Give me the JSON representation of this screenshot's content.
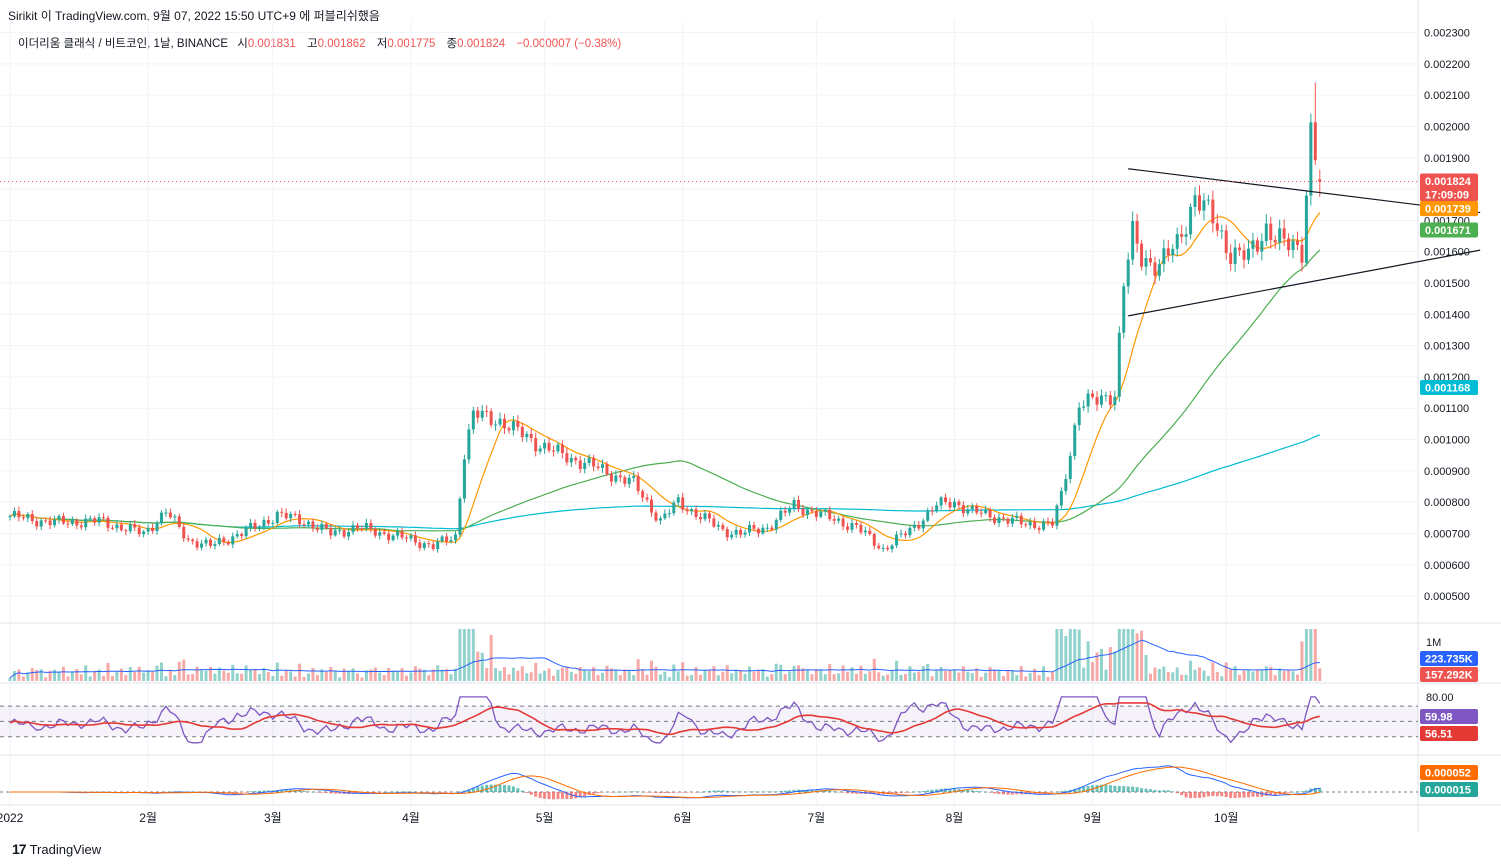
{
  "header": {
    "author": "Sirikit",
    "watermark_line": "이 TradingView.com, 9월 07, 2022 15:50 UTC+9 에 퍼블리쉬했음"
  },
  "symbol": {
    "name": "이더리움 클래식 / 비트코인, 1날, BINANCE",
    "open_label": "시",
    "open": "0.001831",
    "high_label": "고",
    "high": "0.001862",
    "low_label": "저",
    "low": "0.001775",
    "close_label": "종",
    "close": "0.001824",
    "change": "−0.000007 (−0.38%)"
  },
  "footer": {
    "brand": "TradingView",
    "logo": "17"
  },
  "colors": {
    "up": "#26a69a",
    "down": "#ef5350",
    "ma_fast": "#ff9800",
    "ma_mid": "#4caf50",
    "ma_slow": "#00bcd4",
    "rsi": "#7e57c2",
    "rsi_ma": "#e53935",
    "macd": "#2962ff",
    "signal": "#ff6d00",
    "vol_ma": "#2962ff"
  },
  "chart_data": {
    "type": "candlestick",
    "title": "이더리움 클래식 / 비트코인, 1날, BINANCE",
    "price_axis": {
      "ticks": [
        "0.002300",
        "0.002200",
        "0.002100",
        "0.002000",
        "0.001900",
        "0.001800",
        "0.001700",
        "0.001600",
        "0.001500",
        "0.001400",
        "0.001300",
        "0.001200",
        "0.001100",
        "0.001000",
        "0.000900",
        "0.000800",
        "0.000700",
        "0.000600",
        "0.000500"
      ],
      "ylim": [
        0.00043,
        0.00234
      ],
      "scale": "linear"
    },
    "time_axis": {
      "labels": [
        "2022",
        "2월",
        "3월",
        "4월",
        "5월",
        "6월",
        "7월",
        "8월",
        "9월",
        "10월"
      ],
      "label_index": [
        0,
        31,
        59,
        90,
        120,
        151,
        181,
        212,
        243,
        273
      ]
    },
    "price_badges": [
      {
        "label": "last_close",
        "value": "0.001824",
        "sub": "17:09:09",
        "color": "#ef5350"
      },
      {
        "label": "ma_fast",
        "value": "0.001739",
        "color": "#ff9800"
      },
      {
        "label": "ma_mid",
        "value": "0.001671",
        "color": "#4caf50"
      },
      {
        "label": "ma_slow",
        "value": "0.001168",
        "color": "#00bcd4"
      }
    ],
    "volume_panel": {
      "scale_label": "1M",
      "badges": [
        {
          "value": "223.735K",
          "color": "#2962ff"
        },
        {
          "value": "157.292K",
          "color": "#ef5350"
        }
      ]
    },
    "rsi_panel": {
      "level_label": "80.00",
      "upper": 70,
      "lower": 30,
      "badges": [
        {
          "value": "59.98",
          "color": "#7e57c2"
        },
        {
          "value": "56.51",
          "color": "#e53935"
        }
      ]
    },
    "macd_panel": {
      "badges": [
        {
          "value": "0.000052",
          "color": "#ff6d00"
        },
        {
          "value": "0.000015",
          "color": "#26a69a"
        }
      ]
    },
    "anchors": [
      [
        0,
        0.000755
      ],
      [
        10,
        0.000735
      ],
      [
        20,
        0.00074
      ],
      [
        30,
        0.0007
      ],
      [
        35,
        0.00077
      ],
      [
        40,
        0.00068
      ],
      [
        45,
        0.00066
      ],
      [
        50,
        0.00069
      ],
      [
        55,
        0.00072
      ],
      [
        60,
        0.00076
      ],
      [
        66,
        0.00074
      ],
      [
        72,
        0.0007
      ],
      [
        78,
        0.00072
      ],
      [
        84,
        0.0007
      ],
      [
        90,
        0.00068
      ],
      [
        95,
        0.00066
      ],
      [
        100,
        0.00069
      ],
      [
        102,
        0.00096
      ],
      [
        104,
        0.00108
      ],
      [
        110,
        0.00106
      ],
      [
        118,
        0.00099
      ],
      [
        124,
        0.00095
      ],
      [
        130,
        0.00092
      ],
      [
        140,
        0.00086
      ],
      [
        146,
        0.00074
      ],
      [
        150,
        0.0008
      ],
      [
        160,
        0.00071
      ],
      [
        164,
        0.0007
      ],
      [
        170,
        0.00072
      ],
      [
        176,
        0.00079
      ],
      [
        182,
        0.00076
      ],
      [
        190,
        0.00072
      ],
      [
        196,
        0.00065
      ],
      [
        202,
        0.00071
      ],
      [
        208,
        0.00079
      ],
      [
        212,
        0.0008
      ],
      [
        216,
        0.00077
      ],
      [
        222,
        0.00075
      ],
      [
        228,
        0.00073
      ],
      [
        234,
        0.00073
      ],
      [
        236,
        0.00082
      ],
      [
        238,
        0.00096
      ],
      [
        240,
        0.00112
      ],
      [
        244,
        0.00112
      ],
      [
        248,
        0.00115
      ],
      [
        250,
        0.0015
      ],
      [
        252,
        0.00165
      ],
      [
        254,
        0.00158
      ],
      [
        258,
        0.00156
      ],
      [
        262,
        0.00162
      ],
      [
        266,
        0.00178
      ],
      [
        270,
        0.0017
      ],
      [
        274,
        0.0016
      ],
      [
        278,
        0.00158
      ],
      [
        282,
        0.00168
      ],
      [
        286,
        0.00162
      ],
      [
        290,
        0.00161
      ],
      [
        292,
        0.00199
      ],
      [
        294,
        0.001824
      ]
    ],
    "trendlines": [
      {
        "from": [
          251,
          0.001865
        ],
        "to": [
          330,
          0.001725
        ]
      },
      {
        "from": [
          251,
          0.001395
        ],
        "to": [
          330,
          0.001605
        ]
      }
    ]
  }
}
